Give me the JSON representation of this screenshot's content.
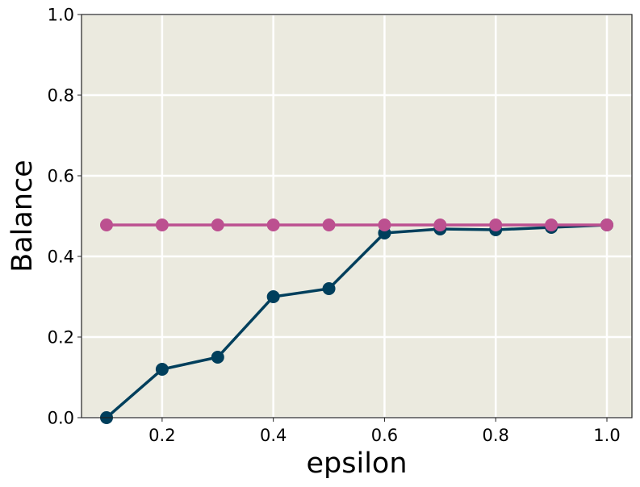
{
  "chart_data": {
    "type": "line",
    "x_label": "epsilon",
    "y_label": "Balance",
    "x": [
      0.1,
      0.2,
      0.3,
      0.4,
      0.5,
      0.6,
      0.7,
      0.8,
      0.9,
      1.0
    ],
    "series": [
      {
        "color": "#003f5c",
        "values": [
          0.0,
          0.12,
          0.15,
          0.3,
          0.32,
          0.458,
          0.468,
          0.466,
          0.472,
          0.478
        ]
      },
      {
        "color": "#bc5090",
        "values": [
          0.478,
          0.478,
          0.478,
          0.478,
          0.478,
          0.478,
          0.478,
          0.478,
          0.478,
          0.478
        ]
      }
    ],
    "xlim": [
      0.055,
      1.045
    ],
    "ylim": [
      0,
      1
    ],
    "xticks": [
      0.2,
      0.4,
      0.6,
      0.8,
      {
        "value": 1,
        "label": "1.0"
      }
    ],
    "yticks": [
      {
        "value": 0,
        "label": "0.0"
      },
      0.2,
      0.4,
      0.6,
      0.8,
      {
        "value": 1,
        "label": "1.0"
      }
    ],
    "grid": true,
    "background": "#ebeadf"
  }
}
